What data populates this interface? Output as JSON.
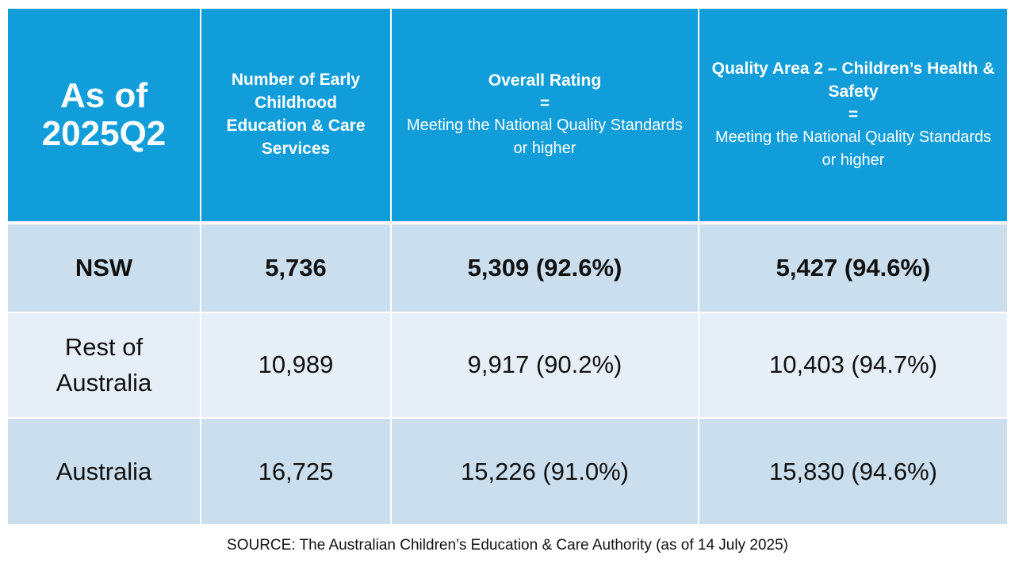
{
  "header": {
    "corner": "As of 2025Q2",
    "col_services": "Number of Early Childhood Education & Care Services",
    "col_overall": {
      "title": "Overall Rating",
      "equals": "=",
      "subtitle": "Meeting the National Quality Standards or higher"
    },
    "col_qa2": {
      "title": "Quality Area 2 – Children’s Health & Safety",
      "equals": "=",
      "subtitle": "Meeting the National Quality Standards or higher"
    }
  },
  "rows": [
    {
      "region": "NSW",
      "services": "5,736",
      "overall": "5,309 (92.6%)",
      "qa2": "5,427 (94.6%)"
    },
    {
      "region": "Rest of Australia",
      "services": "10,989",
      "overall": "9,917 (90.2%)",
      "qa2": "10,403 (94.7%)"
    },
    {
      "region": "Australia",
      "services": "16,725",
      "overall": "15,226 (91.0%)",
      "qa2": "15,830 (94.6%)"
    }
  ],
  "source": "SOURCE: The Australian Children’s Education & Care Authority (as of 14 July 2025)",
  "colors": {
    "header_bg": "#109dd9",
    "row_dark": "#cadeed",
    "row_light": "#e6eff8"
  }
}
